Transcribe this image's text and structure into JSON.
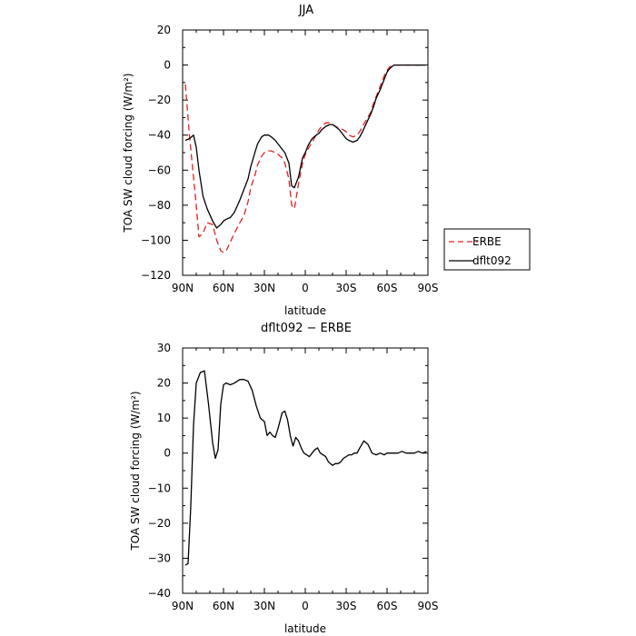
{
  "chart_data": [
    {
      "type": "line",
      "title": "JJA",
      "xlabel": "latitude",
      "ylabel": "TOA SW cloud forcing (W/m²)",
      "xlim": [
        90,
        -90
      ],
      "ylim": [
        -120,
        20
      ],
      "xticks": [
        90,
        60,
        30,
        0,
        -30,
        -60,
        -90
      ],
      "xtick_labels": [
        "90N",
        "60N",
        "30N",
        "0",
        "30S",
        "60S",
        "90S"
      ],
      "yticks": [
        -120,
        -100,
        -80,
        -60,
        -40,
        -20,
        0,
        20
      ],
      "ytick_labels": [
        "−120",
        "−100",
        "−80",
        "−60",
        "−40",
        "−20",
        "0",
        "20"
      ],
      "legend": "right, outside plot",
      "series": [
        {
          "name": "ERBE",
          "color": "#e02020",
          "style": "dashed",
          "x": [
            88,
            85,
            82,
            80,
            78,
            75,
            72,
            68,
            65,
            62,
            60,
            58,
            55,
            52,
            48,
            45,
            42,
            40,
            37,
            35,
            32,
            30,
            27,
            25,
            22,
            20,
            17,
            15,
            12,
            10,
            8,
            5,
            2,
            0,
            -2,
            -5,
            -8,
            -10,
            -12,
            -15,
            -18,
            -20,
            -22,
            -25,
            -28,
            -30,
            -32,
            -35,
            -38,
            -40,
            -42,
            -45,
            -48,
            -50,
            -52,
            -55,
            -58,
            -60,
            -62,
            -65,
            -68,
            -70,
            -72,
            -75,
            -78,
            -80,
            -82,
            -85,
            -88
          ],
          "y": [
            -11,
            -40,
            -64,
            -80,
            -98,
            -96,
            -90,
            -91,
            -100,
            -106,
            -107,
            -106,
            -101,
            -96,
            -90,
            -86,
            -78,
            -70,
            -63,
            -57,
            -52,
            -50,
            -49,
            -49,
            -50,
            -51,
            -53,
            -56,
            -65,
            -80,
            -82,
            -68,
            -56,
            -51,
            -48,
            -44,
            -40,
            -37,
            -35,
            -33,
            -33,
            -34,
            -35,
            -36,
            -37,
            -38,
            -40,
            -41,
            -40,
            -38,
            -35,
            -31,
            -27,
            -22,
            -18,
            -12,
            -6,
            -3,
            -1,
            0,
            0,
            0,
            0,
            0,
            0,
            0,
            0,
            0,
            0
          ]
        },
        {
          "name": "dflt092",
          "color": "#000000",
          "style": "solid",
          "x": [
            88,
            85,
            82,
            80,
            78,
            75,
            72,
            68,
            65,
            62,
            60,
            58,
            55,
            52,
            48,
            45,
            42,
            40,
            37,
            35,
            32,
            30,
            27,
            25,
            22,
            20,
            17,
            15,
            12,
            10,
            8,
            5,
            2,
            0,
            -2,
            -5,
            -8,
            -10,
            -12,
            -15,
            -18,
            -20,
            -22,
            -25,
            -28,
            -30,
            -32,
            -35,
            -38,
            -40,
            -42,
            -45,
            -48,
            -50,
            -52,
            -55,
            -58,
            -60,
            -62,
            -65,
            -68,
            -70,
            -72,
            -75,
            -78,
            -80,
            -82,
            -85,
            -88
          ],
          "y": [
            -43,
            -42,
            -40,
            -47,
            -60,
            -75,
            -82,
            -89,
            -93,
            -91,
            -89,
            -88,
            -87,
            -84,
            -77,
            -71,
            -65,
            -58,
            -50,
            -45,
            -41,
            -40,
            -40,
            -41,
            -43,
            -45,
            -48,
            -50,
            -56,
            -69,
            -70,
            -64,
            -53,
            -50,
            -46,
            -42,
            -40,
            -39,
            -37,
            -35,
            -34,
            -34,
            -35,
            -37,
            -40,
            -42,
            -43,
            -44,
            -43,
            -41,
            -38,
            -33,
            -28,
            -24,
            -19,
            -14,
            -8,
            -4,
            -2,
            0,
            0,
            0,
            0,
            0,
            0,
            0,
            0,
            0,
            0
          ]
        }
      ]
    },
    {
      "type": "line",
      "title": "dflt092 − ERBE",
      "xlabel": "latitude",
      "ylabel": "TOA SW cloud forcing (W/m²)",
      "xlim": [
        90,
        -90
      ],
      "ylim": [
        -40,
        30
      ],
      "xticks": [
        90,
        60,
        30,
        0,
        -30,
        -60,
        -90
      ],
      "xtick_labels": [
        "90N",
        "60N",
        "30N",
        "0",
        "30S",
        "60S",
        "90S"
      ],
      "yticks": [
        -40,
        -30,
        -20,
        -10,
        0,
        10,
        20,
        30
      ],
      "ytick_labels": [
        "−40",
        "−30",
        "−20",
        "−10",
        "0",
        "10",
        "20",
        "30"
      ],
      "series": [
        {
          "color": "#000000",
          "style": "solid",
          "x": [
            88,
            86,
            84,
            82,
            80,
            77,
            74,
            71,
            68,
            66,
            64,
            62,
            60,
            58,
            55,
            52,
            48,
            45,
            42,
            39,
            36,
            33,
            30,
            28,
            26,
            24,
            22,
            20,
            17,
            15,
            13,
            11,
            9,
            7,
            5,
            3,
            1,
            -1,
            -3,
            -5,
            -7,
            -9,
            -11,
            -13,
            -15,
            -17,
            -20,
            -22,
            -24,
            -26,
            -28,
            -30,
            -32,
            -34,
            -36,
            -38,
            -40,
            -43,
            -46,
            -49,
            -52,
            -55,
            -58,
            -60,
            -62,
            -64,
            -66,
            -68,
            -71,
            -74,
            -77,
            -80,
            -83,
            -86,
            -89
          ],
          "y": [
            -32,
            -31.5,
            -15,
            8,
            20,
            23,
            23.5,
            14,
            3,
            -1.5,
            1,
            14,
            19.5,
            20,
            19.5,
            20,
            21,
            21,
            20.5,
            18,
            13.5,
            10,
            9,
            5,
            6,
            5,
            4.5,
            7,
            11.5,
            12,
            9.5,
            5,
            2,
            4.5,
            3.5,
            1.5,
            0,
            -0.5,
            -1,
            0,
            1,
            1.5,
            0,
            -0.5,
            -1,
            -2.5,
            -3.5,
            -3,
            -3,
            -2.5,
            -1.5,
            -1,
            -0.5,
            -0.5,
            0,
            0,
            1.5,
            3.5,
            2.5,
            0,
            -0.5,
            0,
            -0.5,
            0,
            0,
            0,
            0,
            0,
            0.5,
            0,
            0,
            0,
            0.5,
            0,
            0.5
          ]
        }
      ]
    }
  ]
}
